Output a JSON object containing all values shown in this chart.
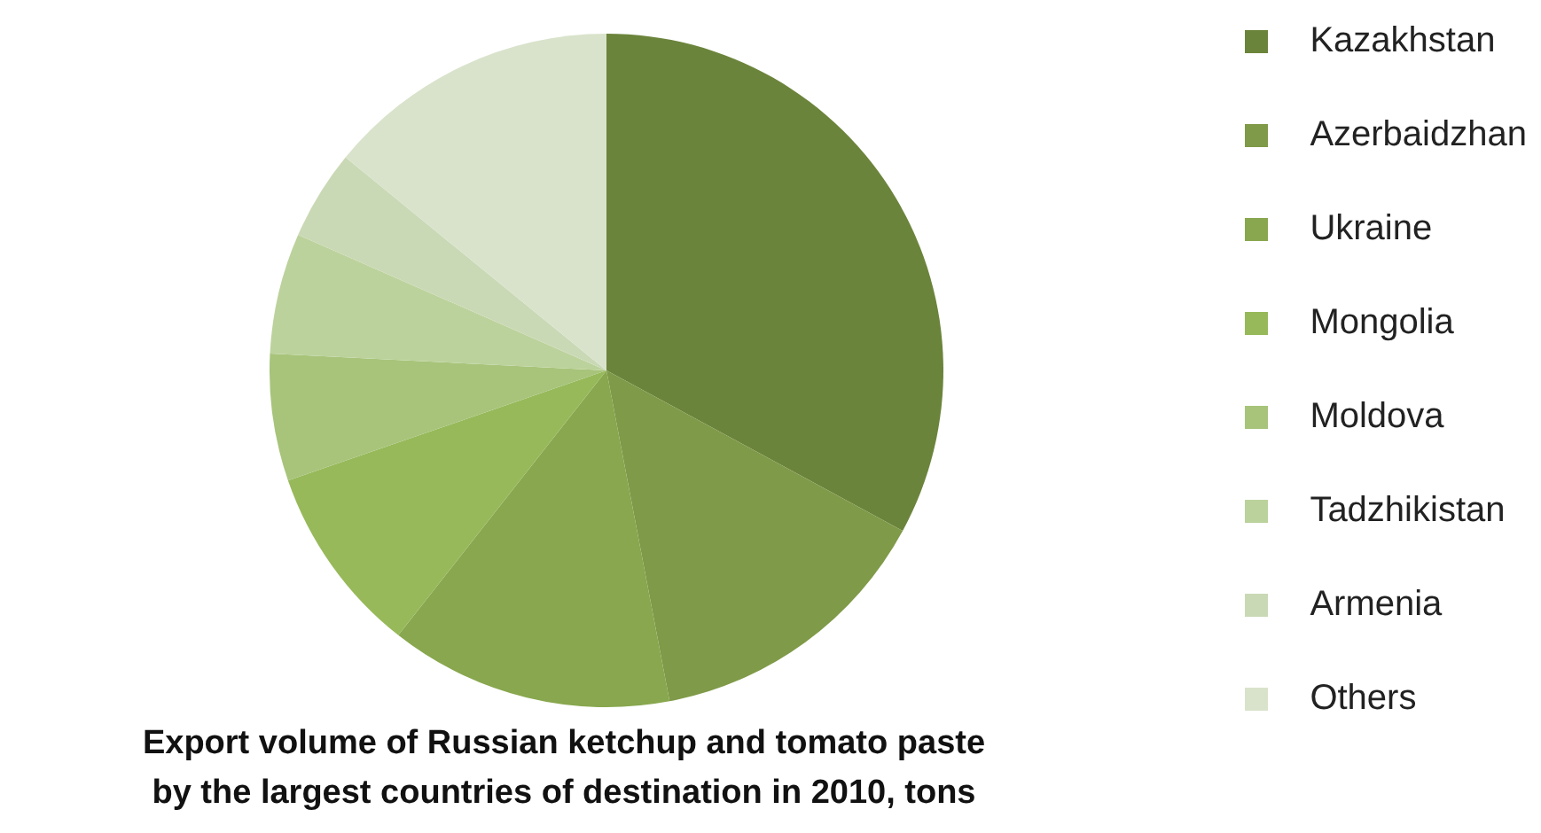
{
  "chart_data": {
    "type": "pie",
    "title": "Export volume of Russian ketchup and tomato paste by the largest countries of destination in 2010, tons",
    "categories": [
      "Kazakhstan",
      "Azerbaidzhan",
      "Ukraine",
      "Mongolia",
      "Moldova",
      "Tadzhikistan",
      "Armenia",
      "Others"
    ],
    "values": [
      32.9,
      14.1,
      13.6,
      9.1,
      6.1,
      5.8,
      4.3,
      14.1
    ],
    "colors": [
      "#6b843b",
      "#7f9a48",
      "#88a74e",
      "#97b95a",
      "#a7c47a",
      "#bcd29c",
      "#cad9b5",
      "#d9e3cb"
    ],
    "legend": "right"
  }
}
